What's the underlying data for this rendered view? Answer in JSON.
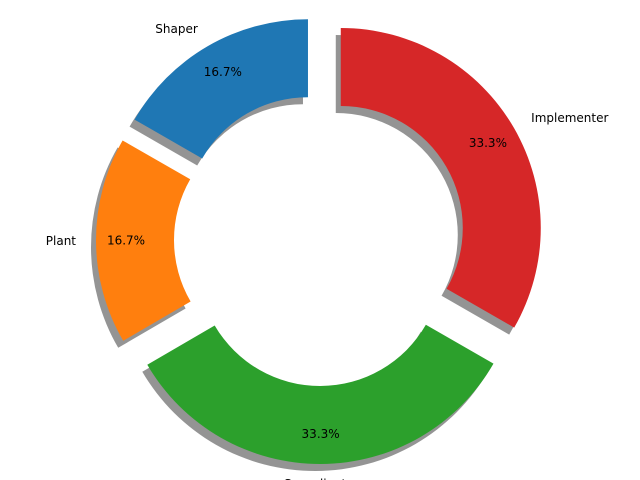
{
  "chart_data": {
    "type": "pie",
    "variant": "donut",
    "title": "",
    "start_angle_deg": 90,
    "direction": "counterclockwise",
    "shadow": true,
    "slices": [
      {
        "label": "Shaper",
        "value": 16.7,
        "pct_label": "16.7%",
        "color": "#1f77b4",
        "exploded": true
      },
      {
        "label": "Plant",
        "value": 16.7,
        "pct_label": "16.7%",
        "color": "#ff7f0e",
        "exploded": true
      },
      {
        "label": "Co-ordinator",
        "value": 33.3,
        "pct_label": "33.3%",
        "color": "#2ca02c",
        "exploded": true
      },
      {
        "label": "Implementer",
        "value": 33.3,
        "pct_label": "33.3%",
        "color": "#d62728",
        "exploded": true
      }
    ]
  }
}
